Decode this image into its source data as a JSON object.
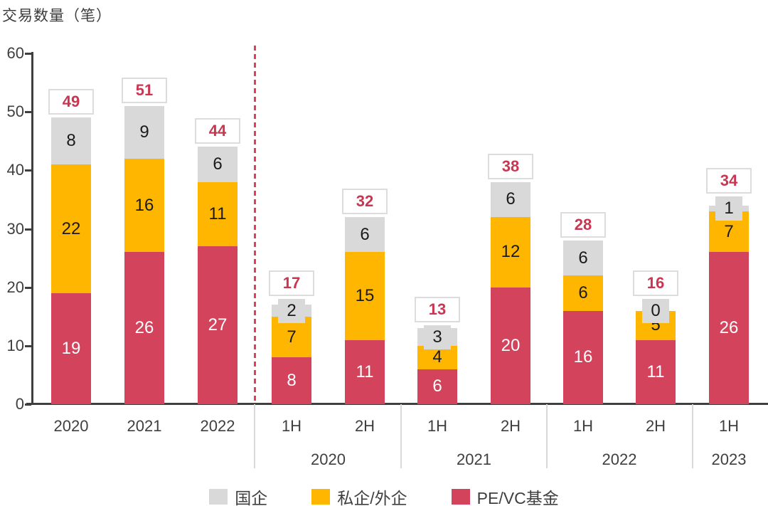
{
  "title": "交易数量（笔）",
  "colors": {
    "pevc_red": "#D4435C",
    "private_orange": "#FFB600",
    "soe_gray": "#D9D9D9",
    "total_text_red": "#C93652",
    "divider_red": "#D6445A",
    "axis_dark": "#3F3F3F",
    "separator_gray": "#D9D9D9",
    "total_box_border": "#DCDCDC"
  },
  "legend": {
    "items": [
      {
        "label": "国企",
        "color": "#D9D9D9"
      },
      {
        "label": "私企/外企",
        "color": "#FFB600"
      },
      {
        "label": "PE/VC基金",
        "color": "#D4435C"
      }
    ]
  },
  "chart_data": {
    "type": "bar",
    "stacked": true,
    "title": "交易数量（笔）",
    "xlabel": "",
    "ylabel": "交易数量（笔）",
    "ylim": [
      0,
      60
    ],
    "yticks": [
      0,
      10,
      20,
      30,
      40,
      50,
      60
    ],
    "grid": false,
    "legend_position": "bottom",
    "categories": [
      "2020",
      "2021",
      "2022",
      "1H",
      "2H",
      "1H",
      "2H",
      "1H",
      "2H",
      "1H"
    ],
    "series": [
      {
        "name": "PE/VC基金",
        "color": "#D4435C",
        "text_color": "#FFFFFF",
        "values": [
          19,
          26,
          27,
          8,
          11,
          6,
          20,
          16,
          11,
          26
        ]
      },
      {
        "name": "私企/外企",
        "color": "#FFB600",
        "text_color": "#1A1A1A",
        "values": [
          22,
          16,
          11,
          7,
          15,
          4,
          12,
          6,
          5,
          7
        ]
      },
      {
        "name": "国企",
        "color": "#D9D9D9",
        "text_color": "#1A1A1A",
        "values": [
          8,
          9,
          6,
          2,
          6,
          3,
          6,
          6,
          0,
          1
        ]
      }
    ],
    "totals": [
      49,
      51,
      44,
      17,
      32,
      13,
      38,
      28,
      16,
      34
    ],
    "group_labels": [
      {
        "label": "2020",
        "from": 3,
        "to": 4
      },
      {
        "label": "2021",
        "from": 5,
        "to": 6
      },
      {
        "label": "2022",
        "from": 7,
        "to": 8
      },
      {
        "label": "2023",
        "from": 9,
        "to": 9
      }
    ],
    "divider_after_category_index": 2
  }
}
